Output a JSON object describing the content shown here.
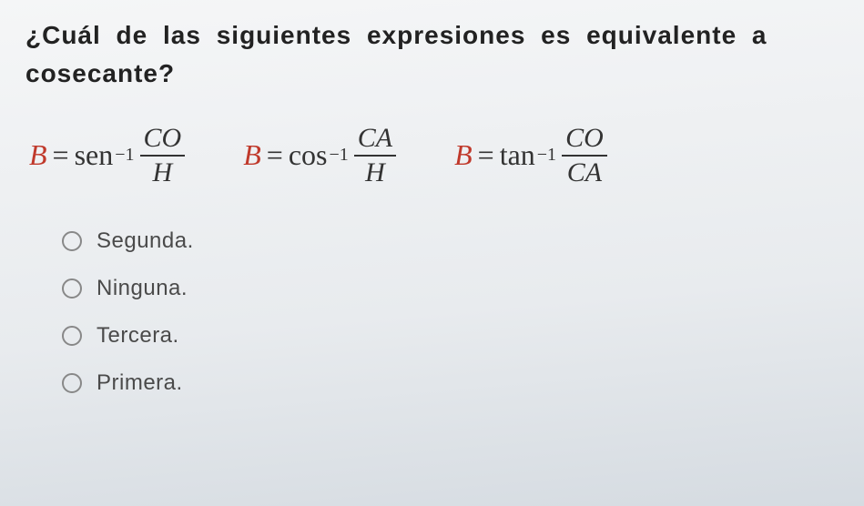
{
  "question": {
    "line1": "¿Cuál de las siguientes expresiones es equivalente a",
    "line2": "cosecante?"
  },
  "formulas": [
    {
      "lhs": "B",
      "fn": "sen",
      "exp": "−1",
      "num": "CO",
      "den": "H"
    },
    {
      "lhs": "B",
      "fn": "cos",
      "exp": "−1",
      "num": "CA",
      "den": "H"
    },
    {
      "lhs": "B",
      "fn": "tan",
      "exp": "−1",
      "num": "CO",
      "den": "CA"
    }
  ],
  "options": [
    {
      "label": "Segunda."
    },
    {
      "label": "Ninguna."
    },
    {
      "label": "Tercera."
    },
    {
      "label": "Primera."
    }
  ],
  "style": {
    "lhs_color": "#c0392b",
    "text_color": "#2a2a2a",
    "question_fontsize": 28,
    "formula_fontsize": 32,
    "option_fontsize": 24,
    "radio_border": "#888888",
    "background_top": "#f5f6f7",
    "background_bottom": "#d5dbe1"
  }
}
